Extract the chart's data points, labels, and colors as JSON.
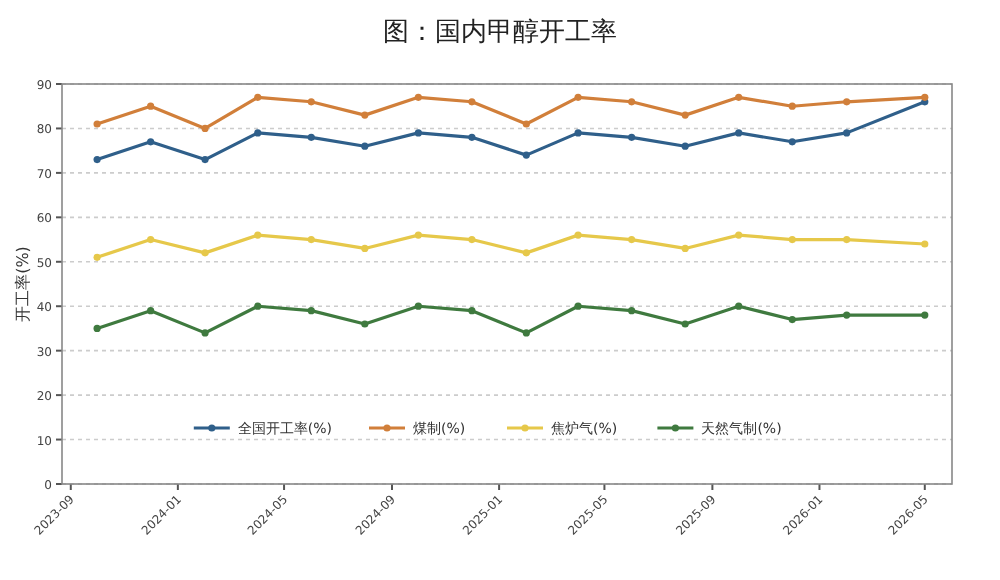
{
  "chart_data": {
    "type": "line",
    "title": "图：国内甲醇开工率",
    "ylabel": "开工率(%)",
    "x": [
      "2023-10",
      "2023-12",
      "2024-02",
      "2024-04",
      "2024-06",
      "2024-08",
      "2024-10",
      "2024-12",
      "2025-02",
      "2025-04",
      "2025-06",
      "2025-08",
      "2025-10",
      "2025-12",
      "2026-02",
      "2026-05"
    ],
    "series": [
      {
        "name": "全国开工率(%)",
        "color": "#2f5f8a",
        "values": [
          73,
          77,
          73,
          79,
          78,
          76,
          79,
          78,
          74,
          79,
          78,
          76,
          79,
          77,
          79,
          86
        ]
      },
      {
        "name": "煤制(%)",
        "color": "#d17f3a",
        "values": [
          81,
          85,
          80,
          87,
          86,
          83,
          87,
          86,
          81,
          87,
          86,
          83,
          87,
          85,
          86,
          87
        ]
      },
      {
        "name": "焦炉气(%)",
        "color": "#e6c84a",
        "values": [
          51,
          55,
          52,
          56,
          55,
          53,
          56,
          55,
          52,
          56,
          55,
          53,
          56,
          55,
          55,
          54
        ]
      },
      {
        "name": "天然气制(%)",
        "color": "#3f7a3f",
        "values": [
          35,
          39,
          34,
          40,
          39,
          36,
          40,
          39,
          34,
          40,
          39,
          36,
          40,
          37,
          38,
          38
        ]
      }
    ],
    "xlim": [
      "2023-08-22",
      "2026-06-01"
    ],
    "xticks": [
      {
        "value": "2023-09",
        "label": "2023-09"
      },
      {
        "value": "2024-01",
        "label": "2024-01"
      },
      {
        "value": "2024-05",
        "label": "2024-05"
      },
      {
        "value": "2024-09",
        "label": "2024-09"
      },
      {
        "value": "2025-01",
        "label": "2025-01"
      },
      {
        "value": "2025-05",
        "label": "2025-05"
      },
      {
        "value": "2025-09",
        "label": "2025-09"
      },
      {
        "value": "2026-01",
        "label": "2026-01"
      },
      {
        "value": "2026-05",
        "label": "2026-05"
      }
    ],
    "ylim": [
      0,
      90
    ],
    "yticks": [
      0,
      10,
      20,
      30,
      40,
      50,
      60,
      70,
      80,
      90
    ],
    "grid": "y",
    "legend": "bottom",
    "marker": "circle",
    "line_style": "solid"
  }
}
